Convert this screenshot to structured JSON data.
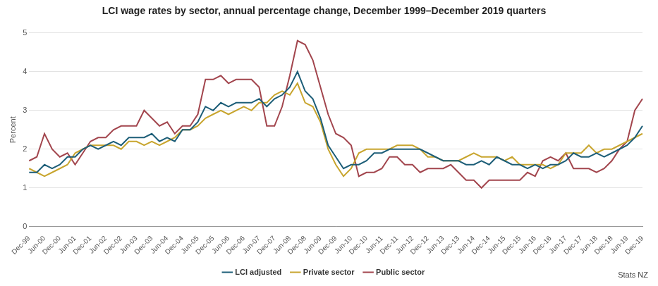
{
  "chart_data": {
    "type": "line",
    "title": "LCI wage rates by sector, annual percentage change, December 1999–December 2019 quarters",
    "y_label": "Percent",
    "source": "Stats NZ",
    "categories": [
      "Dec-99",
      null,
      "Jun-00",
      null,
      "Dec-00",
      null,
      "Jun-01",
      null,
      "Dec-01",
      null,
      "Jun-02",
      null,
      "Dec-02",
      null,
      "Jun-03",
      null,
      "Dec-03",
      null,
      "Jun-04",
      null,
      "Dec-04",
      null,
      "Jun-05",
      null,
      "Dec-05",
      null,
      "Jun-06",
      null,
      "Dec-06",
      null,
      "Jun-07",
      null,
      "Dec-07",
      null,
      "Jun-08",
      null,
      "Dec-08",
      null,
      "Jun-09",
      null,
      "Dec-09",
      null,
      "Jun-10",
      null,
      "Dec-10",
      null,
      "Jun-11",
      null,
      "Dec-11",
      null,
      "Jun-12",
      null,
      "Dec-12",
      null,
      "Jun-13",
      null,
      "Dec-13",
      null,
      "Jun-14",
      null,
      "Dec-14",
      null,
      "Jun-15",
      null,
      "Dec-15",
      null,
      "Jun-16",
      null,
      "Dec-16",
      null,
      "Jun-17",
      null,
      "Dec-17",
      null,
      "Jun-18",
      null,
      "Dec-18",
      null,
      "Jun-19",
      null,
      "Dec-19"
    ],
    "series": [
      {
        "name": "LCI adjusted",
        "color": "#1d5e78",
        "values": [
          1.4,
          1.4,
          1.6,
          1.5,
          1.6,
          1.8,
          1.8,
          2.0,
          2.1,
          2.0,
          2.1,
          2.2,
          2.1,
          2.3,
          2.3,
          2.3,
          2.4,
          2.2,
          2.3,
          2.2,
          2.5,
          2.5,
          2.7,
          3.1,
          3.0,
          3.2,
          3.1,
          3.2,
          3.2,
          3.2,
          3.3,
          3.1,
          3.3,
          3.4,
          3.6,
          4.0,
          3.5,
          3.3,
          2.8,
          2.1,
          1.8,
          1.5,
          1.6,
          1.6,
          1.7,
          1.9,
          1.9,
          2.0,
          2.0,
          2.0,
          2.0,
          2.0,
          1.9,
          1.8,
          1.7,
          1.7,
          1.7,
          1.6,
          1.6,
          1.7,
          1.6,
          1.8,
          1.7,
          1.6,
          1.6,
          1.5,
          1.6,
          1.5,
          1.6,
          1.6,
          1.7,
          1.9,
          1.8,
          1.8,
          1.9,
          1.8,
          1.9,
          2.0,
          2.1,
          2.3,
          2.6
        ]
      },
      {
        "name": "Private sector",
        "color": "#c8a52e",
        "values": [
          1.5,
          1.4,
          1.3,
          1.4,
          1.5,
          1.6,
          1.9,
          2.0,
          2.1,
          2.1,
          2.1,
          2.1,
          2.0,
          2.2,
          2.2,
          2.1,
          2.2,
          2.1,
          2.2,
          2.3,
          2.5,
          2.5,
          2.6,
          2.8,
          2.9,
          3.0,
          2.9,
          3.0,
          3.1,
          3.0,
          3.2,
          3.2,
          3.4,
          3.5,
          3.4,
          3.7,
          3.2,
          3.1,
          2.7,
          2.0,
          1.6,
          1.3,
          1.5,
          1.9,
          2.0,
          2.0,
          2.0,
          2.0,
          2.1,
          2.1,
          2.1,
          2.0,
          1.8,
          1.8,
          1.7,
          1.7,
          1.7,
          1.8,
          1.9,
          1.8,
          1.8,
          1.8,
          1.7,
          1.8,
          1.6,
          1.6,
          1.6,
          1.6,
          1.5,
          1.6,
          1.9,
          1.9,
          1.9,
          2.1,
          1.9,
          2.0,
          2.0,
          2.1,
          2.2,
          2.3,
          2.4
        ]
      },
      {
        "name": "Public sector",
        "color": "#a2454d",
        "values": [
          1.7,
          1.8,
          2.4,
          2.0,
          1.8,
          1.9,
          1.6,
          1.9,
          2.2,
          2.3,
          2.3,
          2.5,
          2.6,
          2.6,
          2.6,
          3.0,
          2.8,
          2.6,
          2.7,
          2.4,
          2.6,
          2.6,
          2.9,
          3.8,
          3.8,
          3.9,
          3.7,
          3.8,
          3.8,
          3.8,
          3.6,
          2.6,
          2.6,
          3.1,
          3.9,
          4.8,
          4.7,
          4.3,
          3.6,
          2.9,
          2.4,
          2.3,
          2.1,
          1.3,
          1.4,
          1.4,
          1.5,
          1.8,
          1.8,
          1.6,
          1.6,
          1.4,
          1.5,
          1.5,
          1.5,
          1.6,
          1.4,
          1.2,
          1.2,
          1.0,
          1.2,
          1.2,
          1.2,
          1.2,
          1.2,
          1.4,
          1.3,
          1.7,
          1.8,
          1.7,
          1.9,
          1.5,
          1.5,
          1.5,
          1.4,
          1.5,
          1.7,
          2.0,
          2.2,
          3.0,
          3.3
        ]
      }
    ],
    "ylim": [
      0,
      5
    ],
    "yticks": [
      0,
      1,
      2,
      3,
      4,
      5
    ],
    "grid": true,
    "legend": "bottom",
    "marker": "none",
    "line_style": "solid"
  }
}
